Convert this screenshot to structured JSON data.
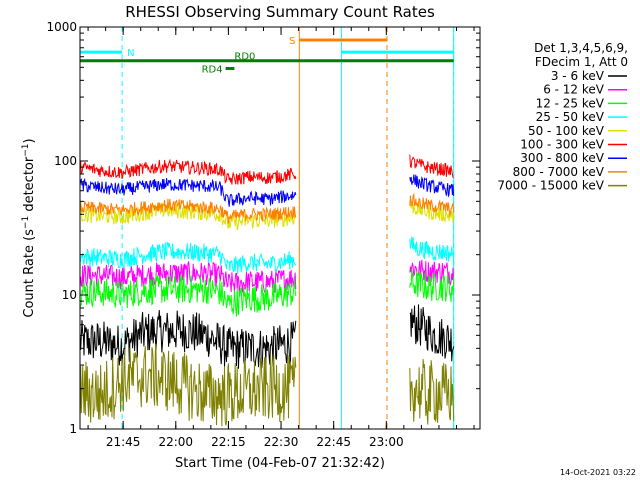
{
  "chart_data": {
    "type": "line",
    "title": "RHESSI Observing Summary Count Rates",
    "xlabel": "Start Time (04-Feb-07 21:32:42)",
    "ylabel_main": "Count Rate (s",
    "ylabel_sup1": "−1",
    "ylabel_mid": " detector",
    "ylabel_sup2": "−1",
    "ylabel_end": ")",
    "x_unit": "minutes after 21:32:42",
    "xlim": [
      0,
      114
    ],
    "ylim": [
      1,
      1000
    ],
    "y_scale": "log",
    "x_ticks": [
      {
        "label": "21:45",
        "value": 12.3
      },
      {
        "label": "22:00",
        "value": 27.3
      },
      {
        "label": "22:15",
        "value": 42.3
      },
      {
        "label": "22:30",
        "value": 57.3
      },
      {
        "label": "22:45",
        "value": 72.3
      },
      {
        "label": "23:00",
        "value": 87.3
      }
    ],
    "y_ticks": [
      {
        "label": "1",
        "value": 1
      },
      {
        "label": "10",
        "value": 10
      },
      {
        "label": "100",
        "value": 100
      },
      {
        "label": "1000",
        "value": 1000
      }
    ],
    "legend_title_1": "Det 1,3,4,5,6,9,",
    "legend_title_2": "FDecim 1, Att 0",
    "legend_position": "right",
    "series": [
      {
        "name": "3 - 6 keV",
        "color": "#000000",
        "segments": [
          {
            "x": [
              0,
              6,
              12,
              18,
              24,
              30,
              36,
              42,
              48,
              54,
              61.5
            ],
            "y": [
              4.5,
              4.5,
              4.2,
              5.2,
              5.4,
              5.4,
              5.0,
              4.0,
              4.0,
              4.0,
              4.5
            ]
          },
          {
            "x": [
              94,
              96,
              99,
              101,
              104,
              106.5
            ],
            "y": [
              6.5,
              6.0,
              5.5,
              5.0,
              4.8,
              4.5
            ]
          }
        ]
      },
      {
        "name": "6 - 12 keV",
        "color": "#ff00ff",
        "segments": [
          {
            "x": [
              0,
              6,
              12,
              18,
              24,
              30,
              36,
              40,
              42,
              48,
              54,
              61.5
            ],
            "y": [
              14.0,
              14.0,
              13.5,
              14.0,
              14.5,
              14.5,
              14.5,
              14.0,
              12.0,
              12.5,
              12.5,
              13.5
            ]
          },
          {
            "x": [
              94,
              96,
              99,
              101,
              104,
              106.5
            ],
            "y": [
              16.5,
              15.5,
              15.0,
              15.0,
              15.0,
              14.5
            ]
          }
        ]
      },
      {
        "name": "12 - 25 keV",
        "color": "#00ff00",
        "segments": [
          {
            "x": [
              0,
              6,
              12,
              18,
              24,
              30,
              36,
              40,
              42,
              48,
              54,
              61.5
            ],
            "y": [
              10.5,
              10.5,
              10.0,
              10.8,
              11.0,
              11.0,
              11.0,
              10.5,
              8.5,
              9.5,
              9.5,
              10.5
            ]
          },
          {
            "x": [
              94,
              96,
              99,
              101,
              104,
              106.5
            ],
            "y": [
              12.5,
              12.0,
              11.5,
              11.5,
              11.5,
              11.0
            ]
          }
        ]
      },
      {
        "name": "25 - 50 keV",
        "color": "#00ffff",
        "segments": [
          {
            "x": [
              0,
              6,
              12,
              18,
              24,
              30,
              36,
              40,
              42,
              48,
              54,
              61.5
            ],
            "y": [
              19.5,
              19.0,
              18.5,
              20.0,
              21.0,
              21.0,
              20.5,
              20.0,
              16.0,
              17.5,
              17.0,
              18.5
            ]
          },
          {
            "x": [
              94,
              96,
              99,
              101,
              104,
              106.5
            ],
            "y": [
              24.0,
              22.5,
              21.5,
              21.0,
              21.0,
              20.0
            ]
          }
        ]
      },
      {
        "name": "50 - 100 keV",
        "color": "#e0e000",
        "segments": [
          {
            "x": [
              0,
              6,
              12,
              18,
              24,
              30,
              36,
              40,
              42,
              48,
              54,
              61.5
            ],
            "y": [
              40.0,
              39.0,
              38.0,
              41.0,
              43.0,
              42.0,
              41.0,
              40.0,
              34.0,
              36.0,
              36.0,
              38.0
            ]
          },
          {
            "x": [
              94,
              96,
              99,
              101,
              104,
              106.5
            ],
            "y": [
              47.0,
              44.0,
              42.0,
              41.0,
              40.0,
              38.0
            ]
          }
        ]
      },
      {
        "name": "100 - 300 keV",
        "color": "#ff0000",
        "segments": [
          {
            "x": [
              0,
              6,
              12,
              18,
              24,
              30,
              36,
              40,
              42,
              48,
              54,
              61.5
            ],
            "y": [
              90.0,
              85.0,
              82.0,
              87.0,
              92.0,
              90.0,
              88.0,
              86.0,
              72.0,
              76.0,
              75.0,
              80.0
            ]
          },
          {
            "x": [
              94,
              96,
              99,
              101,
              104,
              106.5
            ],
            "y": [
              100.0,
              95.0,
              90.0,
              88.0,
              86.0,
              82.0
            ]
          }
        ]
      },
      {
        "name": "300 - 800 keV",
        "color": "#0000ff",
        "segments": [
          {
            "x": [
              0,
              6,
              12,
              18,
              24,
              30,
              36,
              40,
              42,
              48,
              54,
              61.5
            ],
            "y": [
              66.0,
              63.0,
              61.0,
              64.0,
              67.0,
              66.0,
              65.0,
              63.0,
              50.0,
              53.0,
              52.0,
              56.0
            ]
          },
          {
            "x": [
              94,
              96,
              99,
              101,
              104,
              106.5
            ],
            "y": [
              76.0,
              70.0,
              66.0,
              64.0,
              62.0,
              60.0
            ]
          }
        ]
      },
      {
        "name": "800 - 7000 keV",
        "color": "#ff8000",
        "segments": [
          {
            "x": [
              0,
              6,
              12,
              18,
              24,
              30,
              36,
              40,
              42,
              48,
              54,
              61.5
            ],
            "y": [
              45.0,
              44.0,
              43.0,
              45.0,
              47.0,
              46.0,
              45.0,
              44.0,
              38.0,
              40.0,
              40.0,
              42.0
            ]
          },
          {
            "x": [
              94,
              96,
              99,
              101,
              104,
              106.5
            ],
            "y": [
              52.0,
              49.0,
              47.0,
              46.0,
              45.0,
              43.0
            ]
          }
        ]
      },
      {
        "name": "7000 - 15000 keV",
        "color": "#808000",
        "segments": [
          {
            "x": [
              0,
              6,
              12,
              18,
              24,
              30,
              36,
              42,
              48,
              54,
              61.5
            ],
            "y": [
              1.9,
              1.8,
              2.3,
              2.5,
              2.4,
              2.1,
              1.8,
              1.8,
              1.9,
              2.0,
              2.0
            ]
          },
          {
            "x": [
              94,
              96,
              99,
              101,
              104,
              106.5
            ],
            "y": [
              2.0,
              2.0,
              1.8,
              1.9,
              1.8,
              1.8
            ]
          }
        ]
      }
    ],
    "markers": {
      "cyan_vertical_x": [
        0,
        74.5,
        106.5
      ],
      "cyan_dashed_x": [
        12,
        106.5
      ],
      "orange_vertical_x": [
        62.5
      ],
      "orange_dashed_x": [
        87.5
      ],
      "label_N": "N",
      "label_S": "S",
      "label_RD0": "RD0",
      "label_RD4": "RD4",
      "bar_N_x": [
        0,
        12,
        74.5,
        106.5
      ],
      "bar_N_y": 650,
      "bar_S_x": [
        62.5,
        87.5
      ],
      "bar_S_y": 800,
      "bar_RD0_x": [
        0,
        106.5
      ],
      "bar_RD0_y": 560,
      "bar_RD4_x": [
        41.5,
        44
      ],
      "bar_RD4_y": 490
    },
    "colors": {
      "cyan": "#00ffff",
      "orange": "#ff8000",
      "green": "#008000",
      "axis": "#000000",
      "background": "#ffffff"
    }
  },
  "footer": {
    "date_stamp": "14-Oct-2021 03:22"
  }
}
